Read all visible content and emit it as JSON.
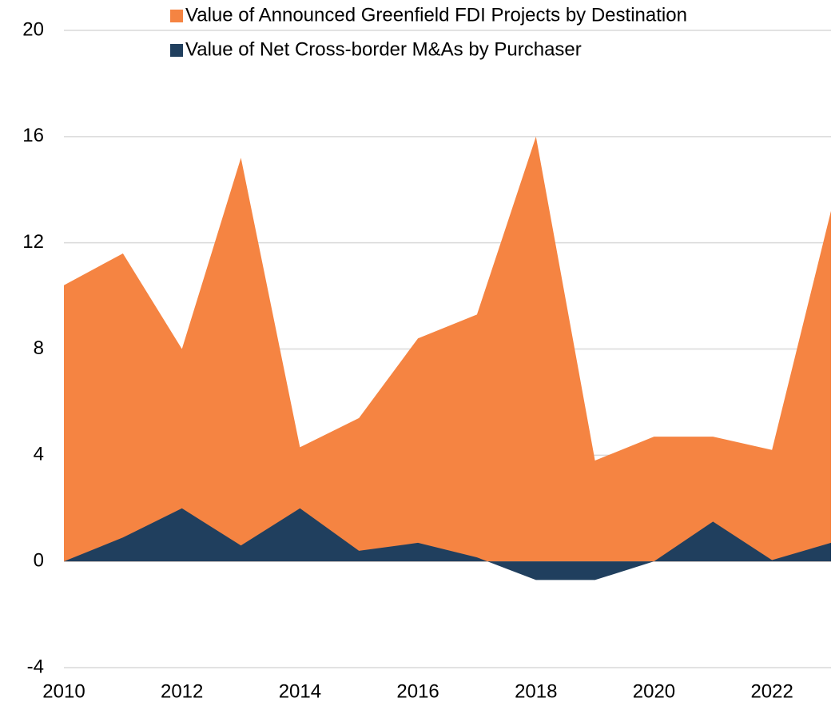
{
  "chart_data": {
    "type": "area",
    "x": [
      2010,
      2011,
      2012,
      2013,
      2014,
      2015,
      2016,
      2017,
      2018,
      2019,
      2020,
      2021,
      2022,
      2023
    ],
    "series": [
      {
        "name": "Value of Announced Greenfield FDI Projects by Destination",
        "color": "#f58442",
        "values": [
          10.4,
          11.6,
          8.0,
          15.2,
          4.3,
          5.4,
          8.4,
          9.3,
          16.0,
          3.8,
          4.7,
          4.7,
          4.2,
          13.2
        ]
      },
      {
        "name": "Value of Net Cross-border M&As by Purchaser",
        "color": "#203f5e",
        "values": [
          0,
          0.9,
          2.0,
          0.6,
          2.0,
          0.4,
          0.7,
          0.15,
          -0.7,
          -0.7,
          0,
          1.5,
          0.05,
          0.7
        ]
      }
    ],
    "xlim": [
      2010,
      2023
    ],
    "xticks": [
      2010,
      2012,
      2014,
      2016,
      2018,
      2020,
      2022
    ],
    "ylim": [
      -4,
      20
    ],
    "yticks": [
      -4,
      0,
      4,
      8,
      12,
      16,
      20
    ],
    "grid": true,
    "legend": "top"
  }
}
